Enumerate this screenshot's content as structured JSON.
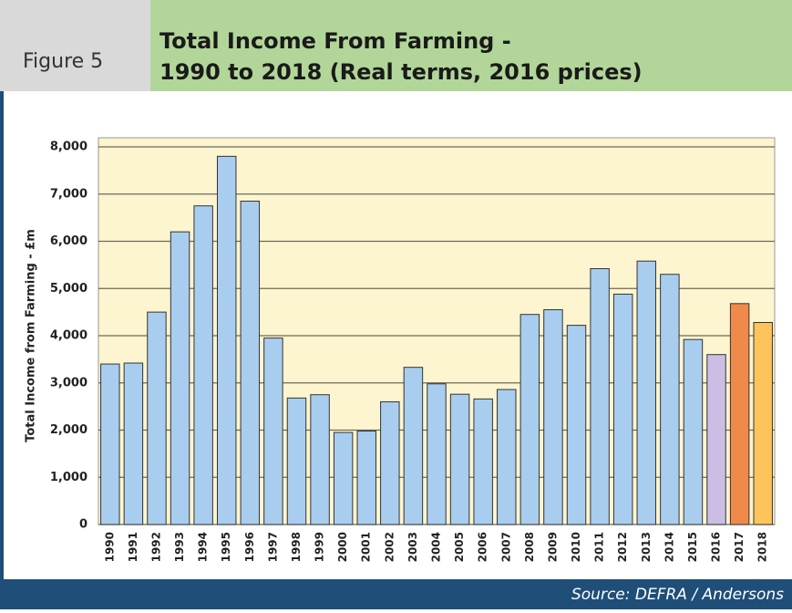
{
  "figure_label": "Figure 5",
  "source": "Source: DEFRA / Andersons",
  "chart_data": {
    "type": "bar",
    "title": [
      "Total Income From Farming -",
      "1990 to 2018 (Real terms, 2016 prices)"
    ],
    "ylabel": "Total Income from Farming - £m",
    "categories": [
      "1990",
      "1991",
      "1992",
      "1993",
      "1994",
      "1995",
      "1996",
      "1997",
      "1998",
      "1999",
      "2000",
      "2001",
      "2002",
      "2003",
      "2004",
      "2005",
      "2006",
      "2007",
      "2008",
      "2009",
      "2010",
      "2011",
      "2012",
      "2013",
      "2014",
      "2015",
      "2016",
      "2017",
      "2018"
    ],
    "values": [
      3400,
      3420,
      4500,
      6200,
      6750,
      7800,
      6850,
      3950,
      2680,
      2750,
      1950,
      1980,
      2600,
      3330,
      2980,
      2760,
      2660,
      2860,
      4450,
      4550,
      4220,
      5420,
      4880,
      5580,
      5300,
      3920,
      3600,
      4680,
      4280
    ],
    "colors": [
      "#a9cdef",
      "#a9cdef",
      "#a9cdef",
      "#a9cdef",
      "#a9cdef",
      "#a9cdef",
      "#a9cdef",
      "#a9cdef",
      "#a9cdef",
      "#a9cdef",
      "#a9cdef",
      "#a9cdef",
      "#a9cdef",
      "#a9cdef",
      "#a9cdef",
      "#a9cdef",
      "#a9cdef",
      "#a9cdef",
      "#a9cdef",
      "#a9cdef",
      "#a9cdef",
      "#a9cdef",
      "#a9cdef",
      "#a9cdef",
      "#a9cdef",
      "#a9cdef",
      "#cbbde3",
      "#f08a4b",
      "#fcc45a"
    ],
    "ylim": [
      0,
      8000
    ],
    "yticks": [
      0,
      {
        "value": 1000,
        "label": "1,000"
      },
      {
        "value": 2000,
        "label": "2,000"
      },
      {
        "value": 3000,
        "label": "3,000"
      },
      {
        "value": 4000,
        "label": "4,000"
      },
      {
        "value": 5000,
        "label": "5,000"
      },
      {
        "value": 6000,
        "label": "6,000"
      },
      {
        "value": 7000,
        "label": "7,000"
      },
      {
        "value": 8000,
        "label": "8,000"
      }
    ],
    "grid": true
  }
}
